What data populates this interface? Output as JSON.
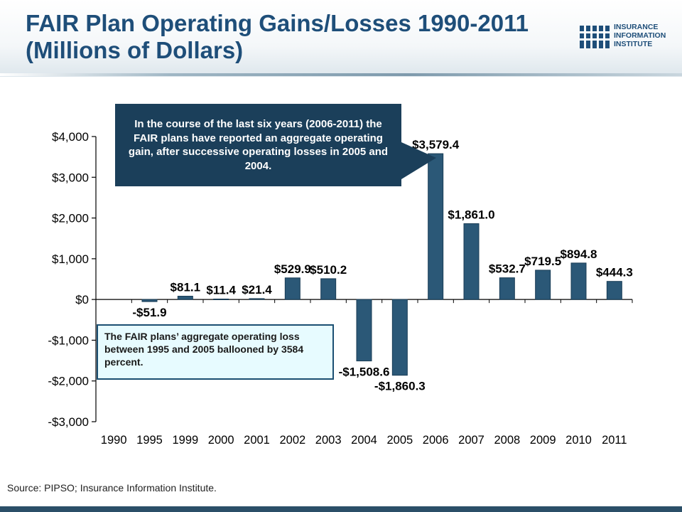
{
  "title": "FAIR Plan Operating Gains/Losses 1990-2011 (Millions of Dollars)",
  "logo": {
    "lines": [
      "INSURANCE",
      "INFORMATION",
      "INSTITUTE"
    ],
    "icon": "iii-logo-icon"
  },
  "callout_top": "In the course of the last six years (2006-2011) the FAIR plans have reported an aggregate operating gain, after successive operating losses in 2005 and 2004.",
  "callout_bottom": "The FAIR plans’ aggregate operating loss between 1995 and 2005 ballooned by 3584 percent.",
  "source": "Source: PIPSO; Insurance Information Institute.",
  "colors": {
    "title": "#1e4e79",
    "bar": "#2b5877",
    "callout_top_bg": "#1b3f5a",
    "callout_bottom_bg": "#e7fbff"
  },
  "chart_data": {
    "type": "bar",
    "categories": [
      "1990",
      "1995",
      "1999",
      "2000",
      "2001",
      "2002",
      "2003",
      "2004",
      "2005",
      "2006",
      "2007",
      "2008",
      "2009",
      "2010",
      "2011"
    ],
    "values": [
      null,
      -51.9,
      81.1,
      11.4,
      21.4,
      529.9,
      510.2,
      -1508.6,
      -1860.3,
      3579.4,
      1861.0,
      532.7,
      719.5,
      894.8,
      444.3
    ],
    "data_labels": [
      "",
      "-$51.9",
      "$81.1",
      "$11.4",
      "$21.4",
      "$529.9",
      "$510.2",
      "-$1,508.6",
      "-$1,860.3",
      "$3,579.4",
      "$1,861.0",
      "$532.7",
      "$719.5",
      "$894.8",
      "$444.3"
    ],
    "ylim": [
      -3000,
      4000
    ],
    "yticks": [
      4000,
      3000,
      2000,
      1000,
      0,
      -1000,
      -2000,
      -3000
    ],
    "ytick_labels": [
      "$4,000",
      "$3,000",
      "$2,000",
      "$1,000",
      "$0",
      "-$1,000",
      "-$2,000",
      "-$3,000"
    ],
    "grid": false,
    "legend": "none"
  }
}
